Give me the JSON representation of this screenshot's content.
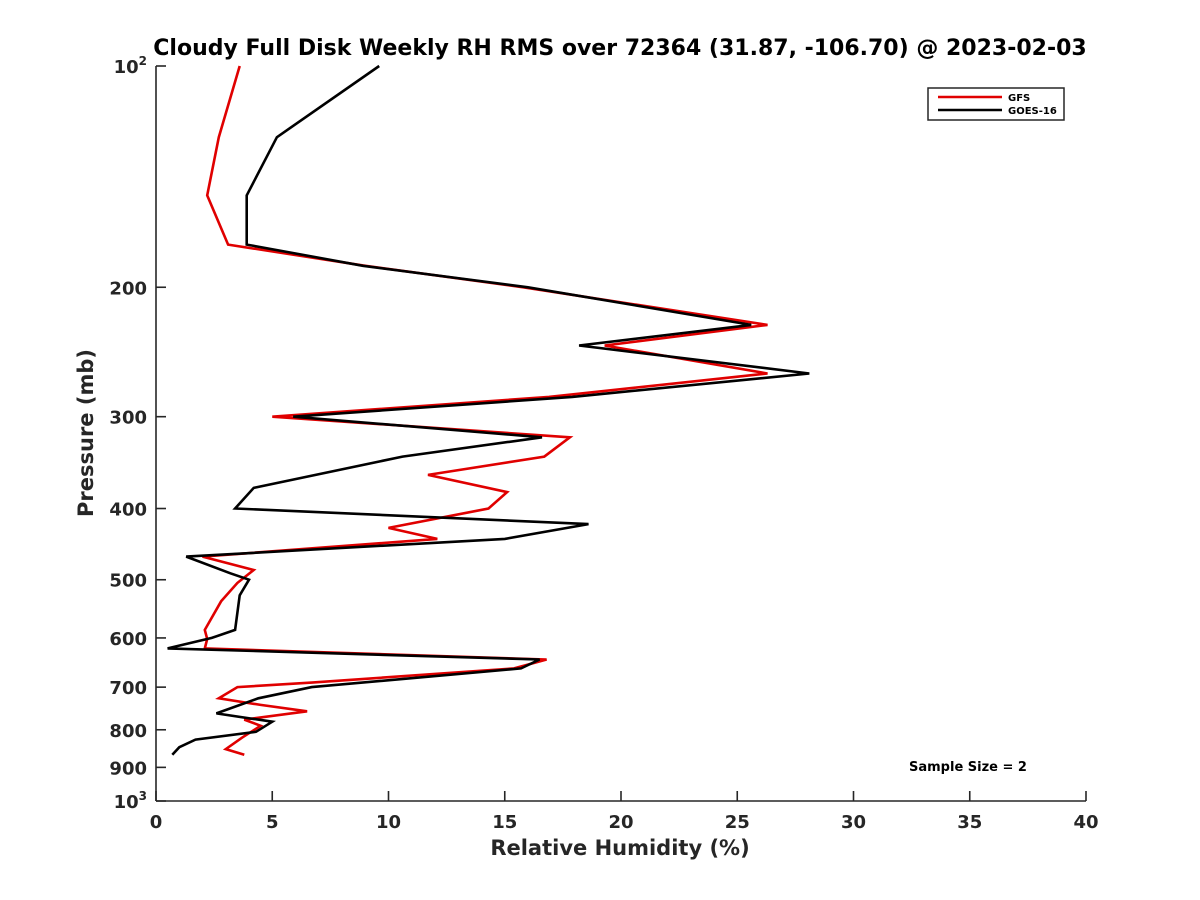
{
  "chart_data": {
    "type": "line",
    "title": "Cloudy Full Disk Weekly RH RMS over 72364 (31.87, -106.70) @ 2023-02-03",
    "xlabel": "Relative Humidity (%)",
    "ylabel": "Pressure (mb)",
    "xlim": [
      0,
      40
    ],
    "ylim": [
      1000,
      100
    ],
    "y_scale": "log",
    "x_ticks": [
      0,
      5,
      10,
      15,
      20,
      25,
      30,
      35,
      40
    ],
    "x_tick_labels": [
      "0",
      "5",
      "10",
      "15",
      "20",
      "25",
      "30",
      "35",
      "40"
    ],
    "y_ticks": [
      {
        "value": 100,
        "base": "10",
        "exp": "2"
      },
      {
        "value": 200,
        "label": "200"
      },
      {
        "value": 300,
        "label": "300"
      },
      {
        "value": 400,
        "label": "400"
      },
      {
        "value": 500,
        "label": "500"
      },
      {
        "value": 600,
        "label": "600"
      },
      {
        "value": 700,
        "label": "700"
      },
      {
        "value": 800,
        "label": "800"
      },
      {
        "value": 900,
        "label": "900"
      },
      {
        "value": 1000,
        "base": "10",
        "exp": "3"
      }
    ],
    "grid": false,
    "legend_position": "top-right",
    "annotation": "Sample Size = 2",
    "series": [
      {
        "name": "GFS",
        "color": "#e00000",
        "points": [
          [
            3.6,
            100
          ],
          [
            2.7,
            125
          ],
          [
            2.2,
            150
          ],
          [
            3.1,
            175
          ],
          [
            9.0,
            187
          ],
          [
            15.8,
            200
          ],
          [
            26.3,
            225
          ],
          [
            19.3,
            240
          ],
          [
            26.3,
            262
          ],
          [
            16.9,
            282
          ],
          [
            5.0,
            300
          ],
          [
            17.8,
            320
          ],
          [
            16.7,
            340
          ],
          [
            11.7,
            360
          ],
          [
            15.1,
            380
          ],
          [
            14.3,
            400
          ],
          [
            10.0,
            425
          ],
          [
            12.1,
            440
          ],
          [
            2.0,
            465
          ],
          [
            4.2,
            485
          ],
          [
            3.5,
            505
          ],
          [
            2.8,
            535
          ],
          [
            2.1,
            585
          ],
          [
            2.2,
            602
          ],
          [
            2.1,
            620
          ],
          [
            16.8,
            642
          ],
          [
            15.4,
            660
          ],
          [
            6.7,
            690
          ],
          [
            3.5,
            700
          ],
          [
            2.7,
            725
          ],
          [
            4.5,
            740
          ],
          [
            6.5,
            755
          ],
          [
            3.8,
            775
          ],
          [
            4.5,
            790
          ],
          [
            3.7,
            820
          ],
          [
            3.0,
            850
          ],
          [
            3.8,
            865
          ]
        ]
      },
      {
        "name": "GOES-16",
        "color": "#000000",
        "points": [
          [
            9.6,
            100
          ],
          [
            5.2,
            125
          ],
          [
            3.9,
            150
          ],
          [
            3.9,
            175
          ],
          [
            8.9,
            187
          ],
          [
            16.0,
            200
          ],
          [
            25.6,
            225
          ],
          [
            18.2,
            240
          ],
          [
            28.1,
            262
          ],
          [
            17.9,
            282
          ],
          [
            5.9,
            300
          ],
          [
            16.6,
            320
          ],
          [
            10.6,
            340
          ],
          [
            4.2,
            375
          ],
          [
            3.4,
            400
          ],
          [
            18.6,
            420
          ],
          [
            15.0,
            440
          ],
          [
            1.3,
            465
          ],
          [
            3.2,
            490
          ],
          [
            4.0,
            500
          ],
          [
            3.6,
            525
          ],
          [
            3.4,
            585
          ],
          [
            2.4,
            600
          ],
          [
            0.5,
            620
          ],
          [
            16.5,
            642
          ],
          [
            15.7,
            660
          ],
          [
            6.7,
            700
          ],
          [
            4.4,
            725
          ],
          [
            2.6,
            760
          ],
          [
            5.0,
            780
          ],
          [
            4.3,
            805
          ],
          [
            1.7,
            825
          ],
          [
            1.0,
            845
          ],
          [
            0.7,
            865
          ]
        ]
      }
    ]
  }
}
